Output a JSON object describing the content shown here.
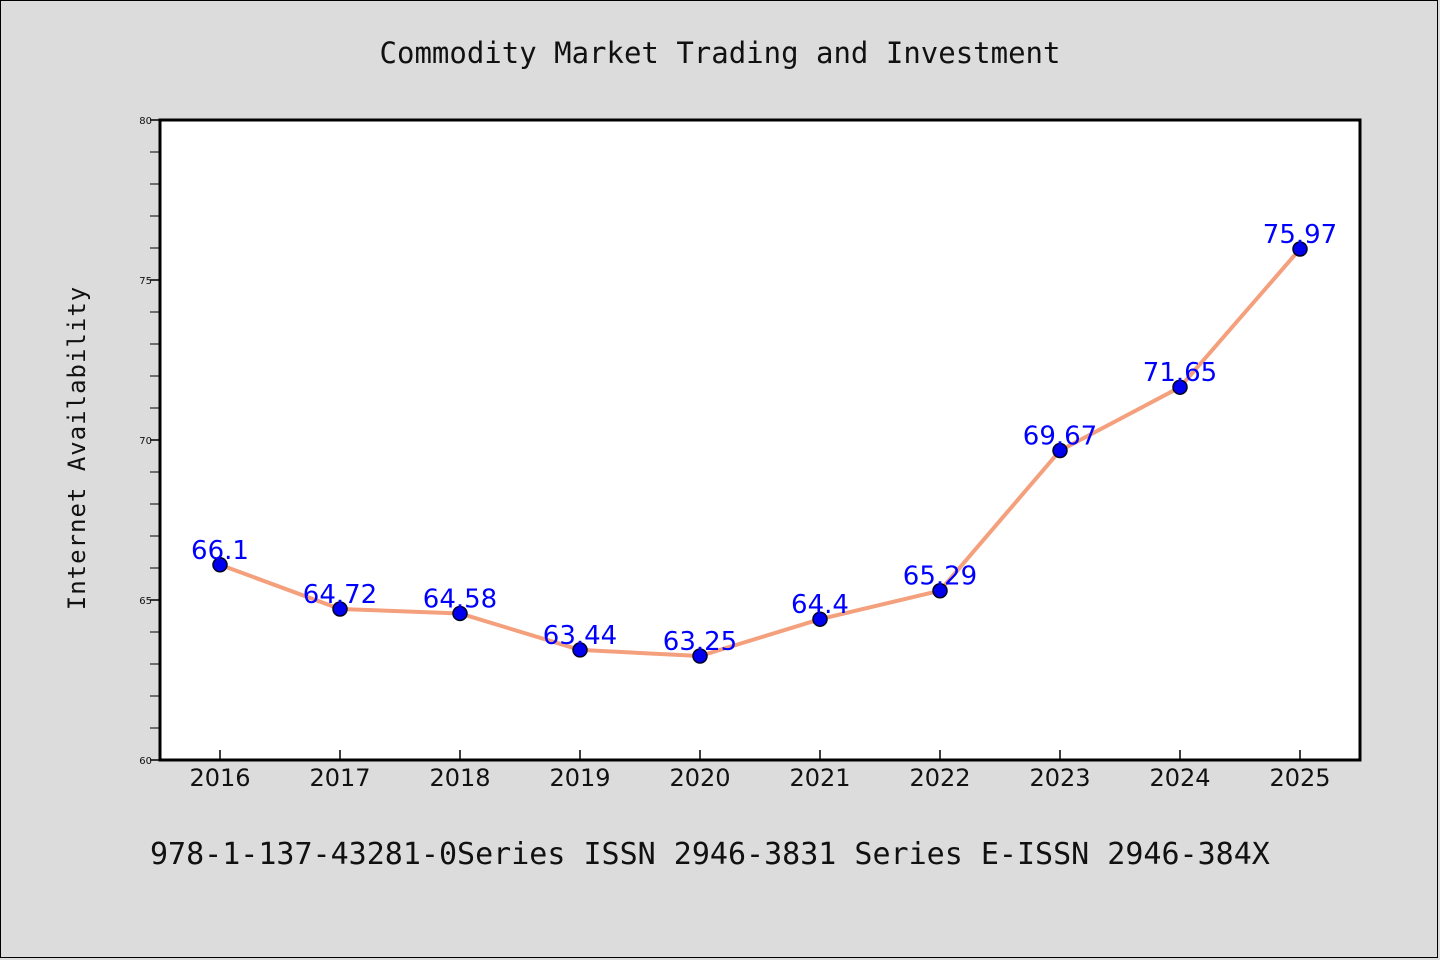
{
  "chart_data": {
    "type": "line",
    "title": "Commodity Market Trading and Investment",
    "xlabel": "",
    "ylabel": "Internet Availability",
    "categories": [
      "2016",
      "2017",
      "2018",
      "2019",
      "2020",
      "2021",
      "2022",
      "2023",
      "2024",
      "2025"
    ],
    "series": [
      {
        "values": [
          66.1,
          64.72,
          64.58,
          63.44,
          63.25,
          64.4,
          65.29,
          69.67,
          71.65,
          75.97
        ],
        "value_labels": [
          "66.1",
          "64.72",
          "64.58",
          "63.44",
          "63.25",
          "64.4",
          "65.29",
          "69.67",
          "71.65",
          "75.97"
        ]
      }
    ],
    "ylim": [
      60,
      80
    ],
    "y_ticks": [
      60,
      65,
      70,
      75,
      80
    ],
    "y_tick_labels": [
      "60",
      "65",
      "70",
      "75",
      "80"
    ],
    "grid": false,
    "colors": {
      "line": "#f4a07c",
      "marker": "#0000ee",
      "label": "#0000ff",
      "background": "#dcdcdc",
      "plot_background": "#ffffff"
    }
  },
  "footer_text": "978-1-137-43281-0Series ISSN 2946-3831 Series E-ISSN 2946-384X"
}
